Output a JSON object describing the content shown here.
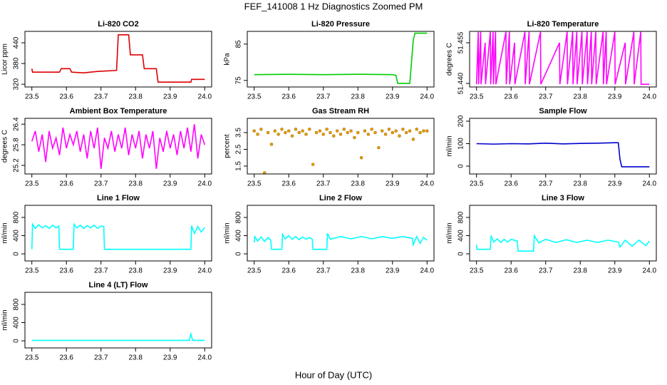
{
  "title": "FEF_141008  1 Hz Diagnostics Zoomed PM",
  "xlabel": "Hour of Day (UTC)",
  "chart_data": [
    {
      "type": "line",
      "title": "Li-820 CO2",
      "ylabel": "Licor ppm",
      "color": "#dd0000",
      "x": [
        23.5,
        23.502,
        23.55,
        23.58,
        23.585,
        23.61,
        23.615,
        23.65,
        23.69,
        23.745,
        23.75,
        23.78,
        23.785,
        23.82,
        23.825,
        23.86,
        23.865,
        23.96,
        23.962,
        24.0
      ],
      "values": [
        365,
        355,
        355,
        355,
        365,
        365,
        355,
        353,
        357,
        360,
        463,
        463,
        405,
        405,
        365,
        365,
        326,
        326,
        334,
        334
      ],
      "xlim": [
        23.48,
        24.02
      ],
      "xticks": [
        23.5,
        23.6,
        23.7,
        23.8,
        23.9,
        {
          "value": 24,
          "label": "24.0"
        }
      ],
      "ylim": [
        312,
        473
      ],
      "yticks": [
        320,
        380,
        440
      ]
    },
    {
      "type": "line",
      "title": "Li-820 Pressure",
      "ylabel": "kPa",
      "color": "#00cc00",
      "x": [
        23.5,
        23.6,
        23.7,
        23.8,
        23.9,
        23.91,
        23.915,
        23.95,
        23.955,
        23.96,
        23.965,
        24.0
      ],
      "values": [
        76.6,
        76.7,
        76.6,
        76.7,
        76.6,
        76.4,
        74.2,
        74.2,
        80,
        86,
        88,
        88
      ],
      "xlim": [
        23.48,
        24.02
      ],
      "xticks": [
        23.5,
        23.6,
        23.7,
        23.8,
        23.9,
        {
          "value": 24,
          "label": "24.0"
        }
      ],
      "ylim": [
        73.2,
        88.5
      ],
      "yticks": [
        75,
        85
      ]
    },
    {
      "type": "line",
      "title": "Li-820 Temperature",
      "ylabel": "degrees C",
      "color": "#ff00ff",
      "x": [
        23.5,
        23.505,
        23.506,
        23.512,
        23.513,
        23.525,
        23.526,
        23.54,
        23.541,
        23.548,
        23.549,
        23.555,
        23.556,
        23.585,
        23.586,
        23.595,
        23.596,
        23.61,
        23.611,
        23.64,
        23.641,
        23.652,
        23.653,
        23.685,
        23.686,
        23.74,
        23.741,
        23.762,
        23.763,
        23.778,
        23.779,
        23.79,
        23.791,
        23.805,
        23.806,
        23.82,
        23.821,
        23.832,
        23.833,
        23.845,
        23.846,
        23.866,
        23.867,
        23.875,
        23.876,
        23.9,
        23.901,
        23.93,
        23.931,
        23.955,
        23.956,
        23.975,
        23.976,
        24.0
      ],
      "values": [
        51.4397,
        51.459,
        51.4397,
        51.459,
        51.4397,
        51.455,
        51.4397,
        51.459,
        51.4397,
        51.459,
        51.4397,
        51.459,
        51.4397,
        51.459,
        51.4397,
        51.459,
        51.4397,
        51.455,
        51.4397,
        51.459,
        51.4397,
        51.459,
        51.4397,
        51.459,
        51.4397,
        51.455,
        51.4397,
        51.459,
        51.4397,
        51.459,
        51.4397,
        51.459,
        51.4397,
        51.459,
        51.4397,
        51.459,
        51.4397,
        51.459,
        51.4397,
        51.459,
        51.4397,
        51.459,
        51.4397,
        51.459,
        51.4397,
        51.459,
        51.4397,
        51.455,
        51.4397,
        51.459,
        51.4397,
        51.459,
        51.4397,
        51.4397
      ],
      "xlim": [
        23.48,
        24.02
      ],
      "xticks": [
        23.5,
        23.6,
        23.7,
        23.8,
        23.9,
        {
          "value": 24,
          "label": "24.0"
        }
      ],
      "ylim": [
        51.4387,
        51.4592
      ],
      "yticks": [
        {
          "value": 51.44,
          "label": "51.440"
        },
        51.455
      ]
    },
    {
      "type": "line",
      "title": "Ambient Box Temperature",
      "ylabel": "degrees C",
      "color": "#ff00ff",
      "x": [
        23.5,
        23.51,
        23.52,
        23.53,
        23.54,
        23.55,
        23.56,
        23.57,
        23.58,
        23.59,
        23.6,
        23.61,
        23.62,
        23.63,
        23.64,
        23.65,
        23.66,
        23.67,
        23.68,
        23.69,
        23.7,
        23.71,
        23.72,
        23.73,
        23.74,
        23.75,
        23.76,
        23.77,
        23.78,
        23.79,
        23.8,
        23.81,
        23.82,
        23.83,
        23.84,
        23.85,
        23.86,
        23.87,
        23.88,
        23.89,
        23.9,
        23.91,
        23.92,
        23.93,
        23.94,
        23.95,
        23.96,
        23.97,
        23.98,
        23.99,
        24.0
      ],
      "values": [
        25.9,
        26.2,
        25.6,
        26.1,
        25.3,
        26.2,
        25.7,
        26.0,
        25.5,
        26.3,
        25.7,
        26.1,
        25.8,
        26.2,
        25.6,
        26.1,
        25.4,
        26.2,
        25.7,
        26.3,
        25.1,
        26.0,
        25.7,
        26.2,
        25.6,
        26.1,
        25.7,
        26.3,
        25.5,
        26.1,
        25.7,
        26.2,
        25.4,
        26.1,
        25.7,
        26.2,
        25.1,
        26.0,
        25.6,
        26.2,
        25.7,
        26.1,
        25.5,
        26.2,
        25.7,
        26.3,
        25.6,
        26.4,
        25.4,
        26.1,
        25.8
      ],
      "xlim": [
        23.48,
        24.02
      ],
      "xticks": [
        23.5,
        23.6,
        23.7,
        23.8,
        23.9,
        {
          "value": 24,
          "label": "24.0"
        }
      ],
      "ylim": [
        24.95,
        26.57
      ],
      "yticks": [
        25.2,
        25.8,
        26.4
      ]
    },
    {
      "type": "scatter",
      "title": "Gas Stream RH",
      "ylabel": "percent",
      "color": "#e69f00",
      "x": [
        23.5,
        23.51,
        23.52,
        23.53,
        23.54,
        23.55,
        23.56,
        23.57,
        23.58,
        23.59,
        23.6,
        23.61,
        23.62,
        23.63,
        23.64,
        23.65,
        23.66,
        23.67,
        23.68,
        23.69,
        23.7,
        23.71,
        23.72,
        23.73,
        23.74,
        23.75,
        23.76,
        23.77,
        23.78,
        23.79,
        23.8,
        23.81,
        23.82,
        23.83,
        23.84,
        23.85,
        23.86,
        23.87,
        23.88,
        23.89,
        23.9,
        23.91,
        23.92,
        23.93,
        23.94,
        23.95,
        23.96,
        23.97,
        23.98,
        23.99,
        24.0
      ],
      "values": [
        3.6,
        3.4,
        3.7,
        1.1,
        3.5,
        2.8,
        3.6,
        3.4,
        3.7,
        3.5,
        3.6,
        3.3,
        3.7,
        3.5,
        3.6,
        3.4,
        3.7,
        1.6,
        3.5,
        3.6,
        3.4,
        3.7,
        3.5,
        3.3,
        3.6,
        3.4,
        3.7,
        3.5,
        3.6,
        3.2,
        3.5,
        2.0,
        3.6,
        3.4,
        3.7,
        3.5,
        2.6,
        3.6,
        3.4,
        3.7,
        3.5,
        3.6,
        3.3,
        3.7,
        3.5,
        3.6,
        3.1,
        3.7,
        3.5,
        3.6,
        3.6
      ],
      "xlim": [
        23.48,
        24.02
      ],
      "xticks": [
        23.5,
        23.6,
        23.7,
        23.8,
        23.9,
        {
          "value": 24,
          "label": "24.0"
        }
      ],
      "ylim": [
        1.03,
        4.35
      ],
      "yticks": [
        1.5,
        2.5,
        3.5
      ]
    },
    {
      "type": "line",
      "title": "Sample Flow",
      "ylabel": "ml/min",
      "color": "#0000cc",
      "x": [
        23.5,
        23.55,
        23.6,
        23.65,
        23.7,
        23.75,
        23.8,
        23.85,
        23.9,
        23.91,
        23.915,
        23.92,
        23.95,
        24.0
      ],
      "values": [
        100,
        98,
        100,
        99,
        102,
        99,
        101,
        102,
        104,
        104,
        30,
        -3,
        -3,
        -3
      ],
      "xlim": [
        23.48,
        24.02
      ],
      "xticks": [
        23.5,
        23.6,
        23.7,
        23.8,
        23.9,
        {
          "value": 24,
          "label": "24.0"
        }
      ],
      "ylim": [
        -35,
        212.7
      ],
      "yticks": [
        0,
        100,
        200
      ]
    },
    {
      "type": "line",
      "title": "Line 1 Flow",
      "ylabel": "ml/min",
      "color": "#00ffff",
      "x": [
        23.5,
        23.502,
        23.51,
        23.52,
        23.53,
        23.54,
        23.55,
        23.56,
        23.57,
        23.578,
        23.58,
        23.62,
        23.622,
        23.63,
        23.64,
        23.65,
        23.66,
        23.67,
        23.68,
        23.69,
        23.7,
        23.708,
        23.71,
        23.96,
        23.962,
        23.97,
        23.98,
        23.99,
        24.0
      ],
      "values": [
        100,
        650,
        560,
        640,
        570,
        620,
        560,
        630,
        570,
        610,
        100,
        100,
        650,
        570,
        630,
        560,
        620,
        570,
        630,
        560,
        610,
        600,
        100,
        100,
        620,
        450,
        600,
        480,
        580
      ],
      "xlim": [
        23.48,
        24.02
      ],
      "xticks": [
        23.5,
        23.6,
        23.7,
        23.8,
        23.9,
        {
          "value": 24,
          "label": "24.0"
        }
      ],
      "ylim": [
        -156,
        1066
      ],
      "yticks": [
        0,
        400,
        800
      ]
    },
    {
      "type": "line",
      "title": "Line 2 Flow",
      "ylabel": "ml/min",
      "color": "#00ffff",
      "x": [
        23.5,
        23.502,
        23.51,
        23.52,
        23.53,
        23.54,
        23.548,
        23.55,
        23.58,
        23.582,
        23.59,
        23.6,
        23.61,
        23.62,
        23.63,
        23.64,
        23.65,
        23.66,
        23.668,
        23.67,
        23.71,
        23.712,
        23.72,
        23.75,
        23.78,
        23.81,
        23.84,
        23.87,
        23.9,
        23.93,
        23.958,
        23.96,
        23.97,
        23.98,
        23.99,
        24.0
      ],
      "values": [
        250,
        380,
        280,
        370,
        270,
        360,
        300,
        100,
        100,
        430,
        330,
        400,
        320,
        380,
        310,
        370,
        320,
        360,
        320,
        100,
        100,
        450,
        320,
        380,
        330,
        380,
        330,
        380,
        340,
        380,
        340,
        200,
        380,
        230,
        360,
        300
      ],
      "xlim": [
        23.48,
        24.02
      ],
      "xticks": [
        23.5,
        23.6,
        23.7,
        23.8,
        23.9,
        {
          "value": 24,
          "label": "24.0"
        }
      ],
      "ylim": [
        -156,
        1066
      ],
      "yticks": [
        0,
        400,
        800
      ]
    },
    {
      "type": "line",
      "title": "Line 3 Flow",
      "ylabel": "ml/min",
      "color": "#00ffff",
      "x": [
        23.5,
        23.501,
        23.54,
        23.542,
        23.55,
        23.56,
        23.57,
        23.58,
        23.59,
        23.6,
        23.618,
        23.62,
        23.665,
        23.667,
        23.68,
        23.7,
        23.73,
        23.76,
        23.79,
        23.82,
        23.85,
        23.88,
        23.91,
        23.915,
        23.93,
        23.95,
        23.97,
        23.99,
        24.0
      ],
      "values": [
        200,
        100,
        100,
        400,
        260,
        330,
        250,
        320,
        260,
        320,
        280,
        60,
        60,
        400,
        240,
        320,
        250,
        310,
        250,
        300,
        250,
        300,
        260,
        150,
        300,
        170,
        300,
        180,
        280
      ],
      "xlim": [
        23.48,
        24.02
      ],
      "xticks": [
        23.5,
        23.6,
        23.7,
        23.8,
        23.9,
        {
          "value": 24,
          "label": "24.0"
        }
      ],
      "ylim": [
        -156,
        1066
      ],
      "yticks": [
        0,
        400,
        800
      ]
    },
    {
      "type": "line",
      "title": "Line 4 (LT) Flow",
      "ylabel": "ml/min",
      "color": "#00ffff",
      "x": [
        23.5,
        23.7,
        23.955,
        23.96,
        23.965,
        24.0
      ],
      "values": [
        10,
        10,
        10,
        150,
        10,
        10
      ],
      "xlim": [
        23.48,
        24.02
      ],
      "xticks": [
        23.5,
        23.6,
        23.7,
        23.8,
        23.9,
        {
          "value": 24,
          "label": "24.0"
        }
      ],
      "ylim": [
        -156,
        1066
      ],
      "yticks": [
        0,
        400,
        800
      ]
    }
  ]
}
